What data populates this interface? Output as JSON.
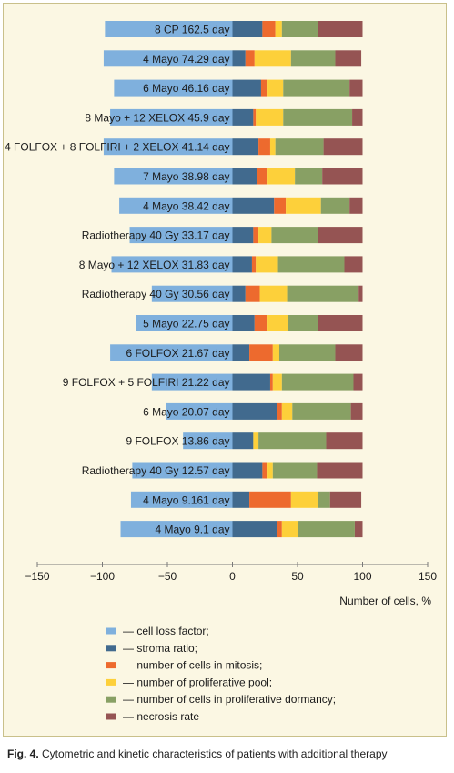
{
  "chart_data": {
    "type": "bar",
    "stacked": true,
    "orientation": "horizontal",
    "xlabel": "Number of cells, %",
    "xlim": [
      -150,
      150
    ],
    "xticks": [
      -150,
      -100,
      -50,
      0,
      50,
      100,
      150
    ],
    "grid": false,
    "legend_position": "bottom",
    "categories": [
      "8 CP  162.5 day",
      "4 Mayo 74.29 day",
      "6 Mayo   46.16 day",
      "8 Mayo + 12 XELOX 45.9 day",
      "4 FOLFOX + 8 FOLFIRI + 2 XELOX 41.14 day",
      "7 Mayo   38.98 day",
      "4 Mayo 38.42 day",
      "Radiotherapy 40 Gy 33.17 day",
      "8 Mayo + 12 XELOX  31.83 day",
      "Radiotherapy 40 Gy  30.56 day",
      "5 Mayo  22.75 day",
      "6 FOLFOX  21.67 day",
      "9 FOLFOX + 5 FOLFIRI  21.22 day",
      "6 Mayo  20.07 day",
      "9 FOLFOX 13.86 day",
      "Radiotherapy 40 Gy  12.57 day",
      "4 Mayo 9.161 day",
      "4 Mayo   9.1 day"
    ],
    "series": [
      {
        "name": "— cell loss factor;",
        "color": "#7fb0dd",
        "values": [
          -98,
          -99,
          -91,
          -94,
          -99,
          -91,
          -87,
          -79,
          -93,
          -62,
          -74,
          -94,
          -62,
          -51,
          -38,
          -77,
          -78,
          -86
        ]
      },
      {
        "name": "— stroma ratio;",
        "color": "#416a8e",
        "values": [
          23,
          10,
          22,
          16,
          20,
          19,
          32,
          16,
          15,
          10,
          17,
          13,
          29,
          34,
          16,
          23,
          13,
          34
        ]
      },
      {
        "name": "— number of cells in mitosis;",
        "color": "#ed6a2e",
        "values": [
          10,
          7,
          5,
          2,
          9,
          8,
          9,
          4,
          3,
          11,
          10,
          18,
          2,
          4,
          0,
          4,
          32,
          4
        ]
      },
      {
        "name": "— number of proliferative pool;",
        "color": "#fdd03a",
        "values": [
          5,
          28,
          12,
          21,
          4,
          21,
          27,
          10,
          17,
          21,
          16,
          5,
          7,
          8,
          4,
          4,
          21,
          12
        ]
      },
      {
        "name": "— number of cells in proliferative dormancy;",
        "color": "#88a064",
        "values": [
          28,
          34,
          51,
          53,
          37,
          21,
          22,
          36,
          51,
          55,
          23,
          43,
          55,
          45,
          52,
          34,
          9,
          44
        ]
      },
      {
        "name": "— necrosis rate",
        "color": "#955453",
        "values": [
          34,
          20,
          10,
          8,
          30,
          31,
          10,
          34,
          14,
          3,
          34,
          21,
          7,
          9,
          28,
          35,
          24,
          6
        ]
      }
    ]
  },
  "caption": {
    "label": "Fig. 4.",
    "text": " Cytometric and kinetic characteristics of patients with additional therapy"
  }
}
